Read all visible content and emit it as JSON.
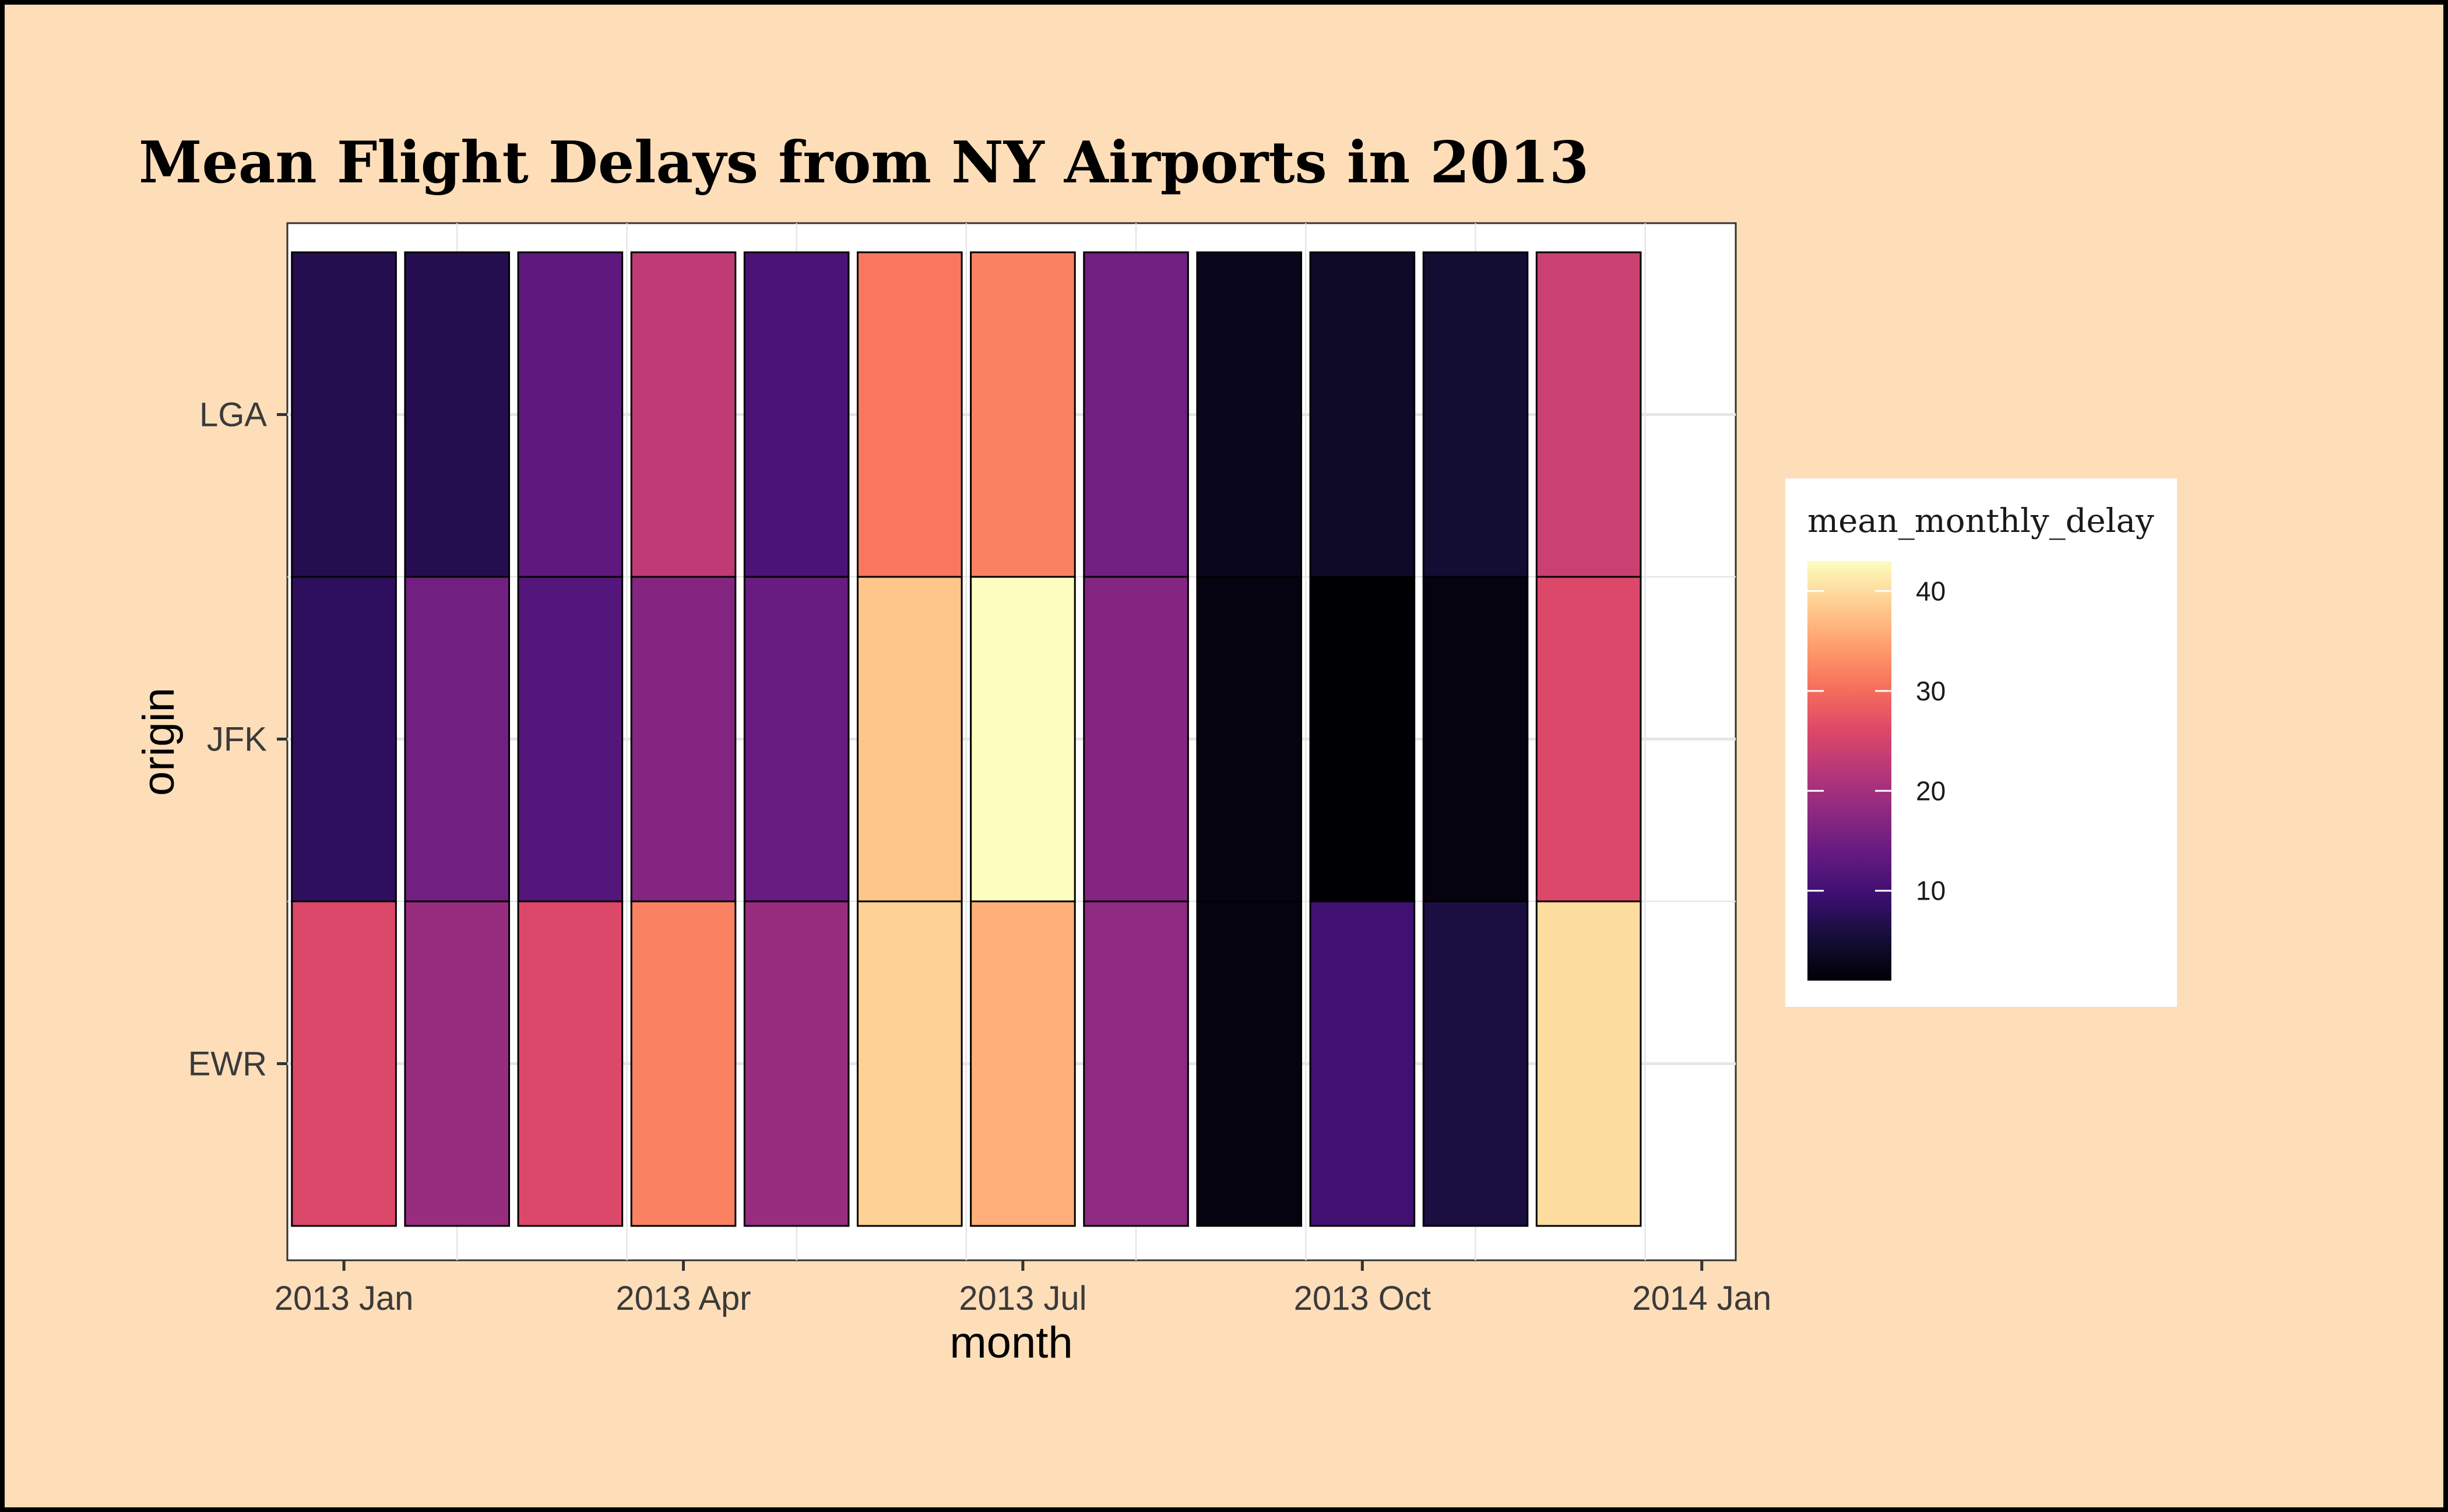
{
  "chart_data": {
    "type": "heatmap",
    "title": "Mean Flight Delays from NY Airports in 2013",
    "xlabel": "month",
    "ylabel": "origin",
    "x_tick_labels": [
      "2013 Jan",
      "2013 Apr",
      "2013 Jul",
      "2013 Oct",
      "2014 Jan"
    ],
    "x_tick_months": [
      0,
      3,
      6,
      9,
      12
    ],
    "x_range_months": [
      -0.5,
      12.3
    ],
    "months": [
      0,
      1,
      2,
      3,
      4,
      5,
      6,
      7,
      8,
      9,
      10,
      11
    ],
    "origins": [
      "EWR",
      "JFK",
      "LGA"
    ],
    "values": {
      "LGA": [
        7,
        7,
        13,
        23,
        11,
        31,
        32,
        15,
        3,
        4,
        5,
        24
      ],
      "JFK": [
        8,
        15,
        12,
        17,
        14,
        38,
        43,
        17,
        2,
        1,
        2,
        26
      ],
      "EWR": [
        26,
        19,
        26,
        32,
        19,
        39,
        36,
        18,
        2,
        10,
        6,
        40
      ]
    },
    "legend": {
      "title": "mean_monthly_delay",
      "ticks": [
        10,
        20,
        30,
        40
      ],
      "range": [
        1,
        43
      ],
      "position": "right"
    },
    "colors": {
      "panel": "#ffffff",
      "background": "#fddeb9",
      "grid": "#e6e6e6",
      "tile_border": "#000000"
    },
    "colormap": "magma"
  }
}
